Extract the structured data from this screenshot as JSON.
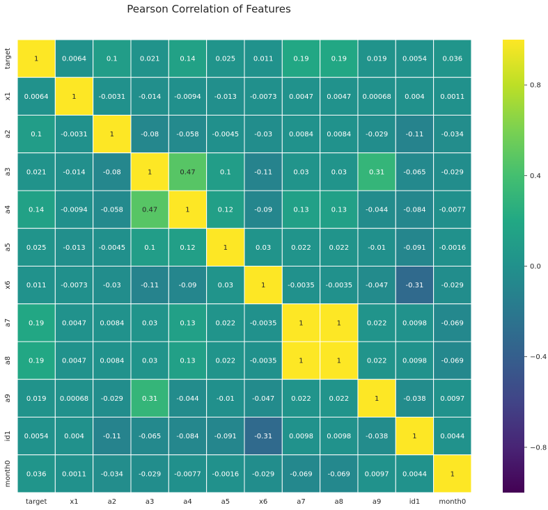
{
  "chart_data": {
    "type": "heatmap",
    "title": "Pearson Correlation of Features",
    "labels": [
      "target",
      "x1",
      "a2",
      "a3",
      "a4",
      "a5",
      "x6",
      "a7",
      "a8",
      "a9",
      "id1",
      "month0"
    ],
    "matrix": [
      [
        1,
        0.0064,
        0.1,
        0.021,
        0.14,
        0.025,
        0.011,
        0.19,
        0.19,
        0.019,
        0.0054,
        0.036
      ],
      [
        0.0064,
        1,
        -0.0031,
        -0.014,
        -0.0094,
        -0.013,
        -0.0073,
        0.0047,
        0.0047,
        0.00068,
        0.004,
        0.0011
      ],
      [
        0.1,
        -0.0031,
        1,
        -0.08,
        -0.058,
        -0.0045,
        -0.03,
        0.0084,
        0.0084,
        -0.029,
        -0.11,
        -0.034
      ],
      [
        0.021,
        -0.014,
        -0.08,
        1,
        0.47,
        0.1,
        -0.11,
        0.03,
        0.03,
        0.31,
        -0.065,
        -0.029
      ],
      [
        0.14,
        -0.0094,
        -0.058,
        0.47,
        1,
        0.12,
        -0.09,
        0.13,
        0.13,
        -0.044,
        -0.084,
        -0.0077
      ],
      [
        0.025,
        -0.013,
        -0.0045,
        0.1,
        0.12,
        1,
        0.03,
        0.022,
        0.022,
        -0.01,
        -0.091,
        -0.0016
      ],
      [
        0.011,
        -0.0073,
        -0.03,
        -0.11,
        -0.09,
        0.03,
        1,
        -0.0035,
        -0.0035,
        -0.047,
        -0.31,
        -0.029
      ],
      [
        0.19,
        0.0047,
        0.0084,
        0.03,
        0.13,
        0.022,
        -0.0035,
        1,
        1,
        0.022,
        0.0098,
        -0.069
      ],
      [
        0.19,
        0.0047,
        0.0084,
        0.03,
        0.13,
        0.022,
        -0.0035,
        1,
        1,
        0.022,
        0.0098,
        -0.069
      ],
      [
        0.019,
        0.00068,
        -0.029,
        0.31,
        -0.044,
        -0.01,
        -0.047,
        0.022,
        0.022,
        1,
        -0.038,
        0.0097
      ],
      [
        0.0054,
        0.004,
        -0.11,
        -0.065,
        -0.084,
        -0.091,
        -0.31,
        0.0098,
        0.0098,
        -0.038,
        1,
        0.0044
      ],
      [
        0.036,
        0.0011,
        -0.034,
        -0.029,
        -0.0077,
        -0.0016,
        -0.029,
        -0.069,
        -0.069,
        0.0097,
        0.0044,
        1
      ]
    ],
    "vmin": -1,
    "vmax": 1,
    "colormap": "viridis",
    "annotated": true,
    "colorbar_ticks": [
      0.8,
      0.4,
      0.0,
      -0.4,
      -0.8
    ],
    "colorbar_tick_labels": [
      "0.8",
      "0.4",
      "0.0",
      "−0.4",
      "−0.8"
    ]
  }
}
